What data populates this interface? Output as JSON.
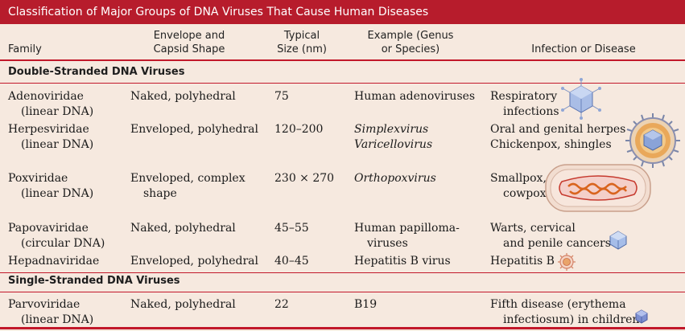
{
  "title": "Classification of Major Groups of DNA Viruses That Cause Human Diseases",
  "headers": {
    "family": "Family",
    "envelope_l1": "Envelope and",
    "envelope_l2": "Capsid Shape",
    "size_l1": "Typical",
    "size_l2": "Size (nm)",
    "example_l1": "Example (Genus",
    "example_l2": "or Species)",
    "disease": "Infection or Disease"
  },
  "sections": {
    "ds": "Double-Stranded DNA Viruses",
    "ss": "Single-Stranded DNA Viruses"
  },
  "rows": [
    {
      "family": "Adenoviridae",
      "dna": "(linear DNA)",
      "shape": "Naked, polyhedral",
      "shape2": "",
      "size": "75",
      "ex1": "Human adenoviruses",
      "ex2": "",
      "dis1": "Respiratory",
      "dis2": "infections",
      "icon": "adenovirus-icon"
    },
    {
      "family": "Herpesviridae",
      "dna": "(linear DNA)",
      "shape": "Enveloped, polyhedral",
      "shape2": "",
      "size": "120–200",
      "ex1": "Simplexvirus",
      "ex2": "Varicellovirus",
      "dis1": "Oral and genital herpes",
      "dis2": "Chickenpox, shingles",
      "icon": "herpesvirus-icon"
    },
    {
      "family": "Poxviridae",
      "dna": "(linear DNA)",
      "shape": "Enveloped, complex",
      "shape2": "shape",
      "size": "230 × 270",
      "ex1": "Orthopoxvirus",
      "ex2": "",
      "dis1": "Smallpox,",
      "dis2": "cowpox",
      "icon": "poxvirus-icon"
    },
    {
      "family": "Papovaviridae",
      "dna": "(circular DNA)",
      "shape": "Naked, polyhedral",
      "shape2": "",
      "size": "45–55",
      "ex1": "Human papilloma-",
      "ex2": "viruses",
      "dis1": "Warts, cervical",
      "dis2": "and penile cancers",
      "icon": "papovavirus-icon"
    },
    {
      "family": "Hepadnaviridae",
      "dna": "",
      "shape": "Enveloped, polyhedral",
      "shape2": "",
      "size": "40–45",
      "ex1": "Hepatitis B virus",
      "ex2": "",
      "dis1": "Hepatitis B",
      "dis2": "",
      "icon": "hepadnavirus-icon"
    },
    {
      "family": "Parvoviridae",
      "dna": "(linear DNA)",
      "shape": "Naked, polyhedral",
      "shape2": "",
      "size": "22",
      "ex1": "B19",
      "ex2": "",
      "dis1": "Fifth disease (erythema",
      "dis2": "infectiosum) in children",
      "icon": "parvovirus-icon"
    }
  ],
  "colors": {
    "title_bg": "#b71c2c",
    "table_bg": "#f6e9df",
    "rule": "#c2182a"
  }
}
